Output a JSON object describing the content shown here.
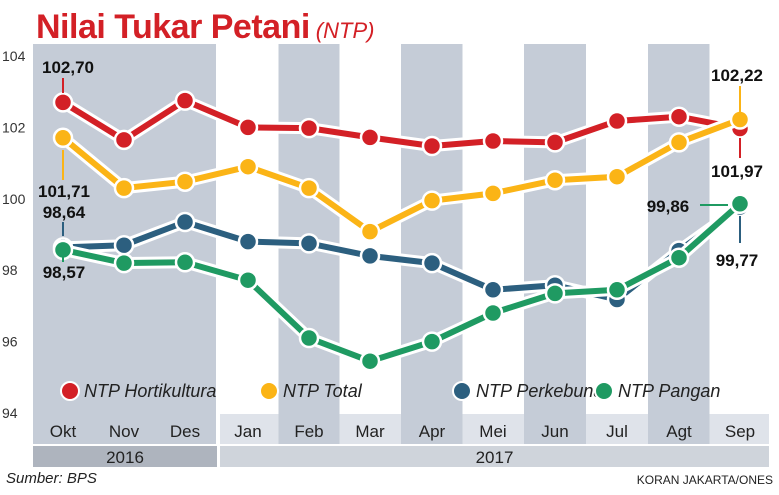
{
  "header": {
    "title": "Nilai Tukar Petani",
    "subtitle": "(NTP)"
  },
  "footer": {
    "source": "Sumber: BPS",
    "credit": "KORAN JAKARTA/ONES"
  },
  "colors": {
    "NTP Hortikultura": "#d32026",
    "NTP Total": "#fbb416",
    "NTP Perkebunan": "#2c5f7f",
    "NTP Pangan": "#1f9a62",
    "shaded_band": "#bcc4d0",
    "year_bar": "#aeb4be"
  },
  "chart_data": {
    "type": "line",
    "categories": [
      "Okt",
      "Nov",
      "Des",
      "Jan",
      "Feb",
      "Mar",
      "Apr",
      "Mei",
      "Jun",
      "Jul",
      "Agt",
      "Sep"
    ],
    "years": [
      {
        "label": "2016",
        "months": [
          "Okt",
          "Nov",
          "Des"
        ]
      },
      {
        "label": "2017",
        "months": [
          "Jan",
          "Feb",
          "Mar",
          "Apr",
          "Mei",
          "Jun",
          "Jul",
          "Agt",
          "Sep"
        ]
      }
    ],
    "ylim": [
      94,
      104
    ],
    "yticks": [
      "94",
      "96",
      "98",
      "100",
      "102",
      "104"
    ],
    "legend_position": "bottom",
    "series": [
      {
        "name": "NTP Hortikultura",
        "values": [
          102.7,
          101.65,
          102.75,
          102.0,
          101.98,
          101.72,
          101.48,
          101.62,
          101.58,
          102.18,
          102.3,
          101.97
        ]
      },
      {
        "name": "NTP Total",
        "values": [
          101.71,
          100.3,
          100.48,
          100.9,
          100.3,
          99.08,
          99.95,
          100.15,
          100.52,
          100.62,
          101.58,
          102.22
        ]
      },
      {
        "name": "NTP Perkebunan",
        "values": [
          98.64,
          98.7,
          99.35,
          98.8,
          98.75,
          98.4,
          98.2,
          97.45,
          97.58,
          97.18,
          98.55,
          99.77
        ]
      },
      {
        "name": "NTP Pangan",
        "values": [
          98.57,
          98.2,
          98.22,
          97.72,
          96.1,
          95.45,
          96.0,
          96.8,
          97.35,
          97.45,
          98.35,
          99.86
        ]
      }
    ],
    "data_labels": [
      {
        "series": "NTP Hortikultura",
        "month": "Okt",
        "text": "102,70"
      },
      {
        "series": "NTP Total",
        "month": "Okt",
        "text": "101,71"
      },
      {
        "series": "NTP Perkebunan",
        "month": "Okt",
        "text": "98,64"
      },
      {
        "series": "NTP Pangan",
        "month": "Okt",
        "text": "98,57"
      },
      {
        "series": "NTP Total",
        "month": "Sep",
        "text": "102,22"
      },
      {
        "series": "NTP Hortikultura",
        "month": "Sep",
        "text": "101,97"
      },
      {
        "series": "NTP Pangan",
        "month": "Sep",
        "text": "99,86"
      },
      {
        "series": "NTP Perkebunan",
        "month": "Sep",
        "text": "99,77"
      }
    ]
  }
}
